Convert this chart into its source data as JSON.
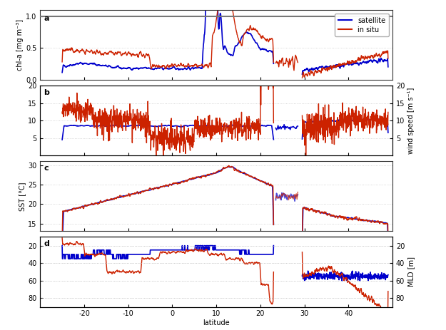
{
  "title": "",
  "xlabel": "latitude",
  "xlim": [
    -30,
    50
  ],
  "xticks": [
    -20,
    -10,
    0,
    10,
    20,
    30,
    40
  ],
  "panel_a": {
    "label": "a",
    "ylabel": "chl-a [mg m⁻³]",
    "ylim": [
      0,
      1.1
    ],
    "yticks": [
      0,
      0.5,
      1.0
    ],
    "hline": 1.0,
    "hline_color": "#777777"
  },
  "panel_b": {
    "label": "b",
    "ylabel_right": "wind speed [m s⁻¹]",
    "ylim": [
      0,
      20
    ],
    "yticks": [
      5,
      10,
      15,
      20
    ]
  },
  "panel_c": {
    "label": "c",
    "ylabel": "SST [°C]",
    "ylim": [
      13,
      31
    ],
    "yticks": [
      15,
      20,
      25,
      30
    ]
  },
  "panel_d": {
    "label": "d",
    "ylabel_right": "MLD [m]",
    "ylim": [
      90,
      10
    ],
    "yticks": [
      20,
      40,
      60,
      80
    ]
  },
  "satellite_color": "#0000cc",
  "insitu_color": "#cc2200",
  "background_color": "#ffffff",
  "grid_color": "#cccccc",
  "legend_labels": [
    "satellite",
    "in situ"
  ]
}
